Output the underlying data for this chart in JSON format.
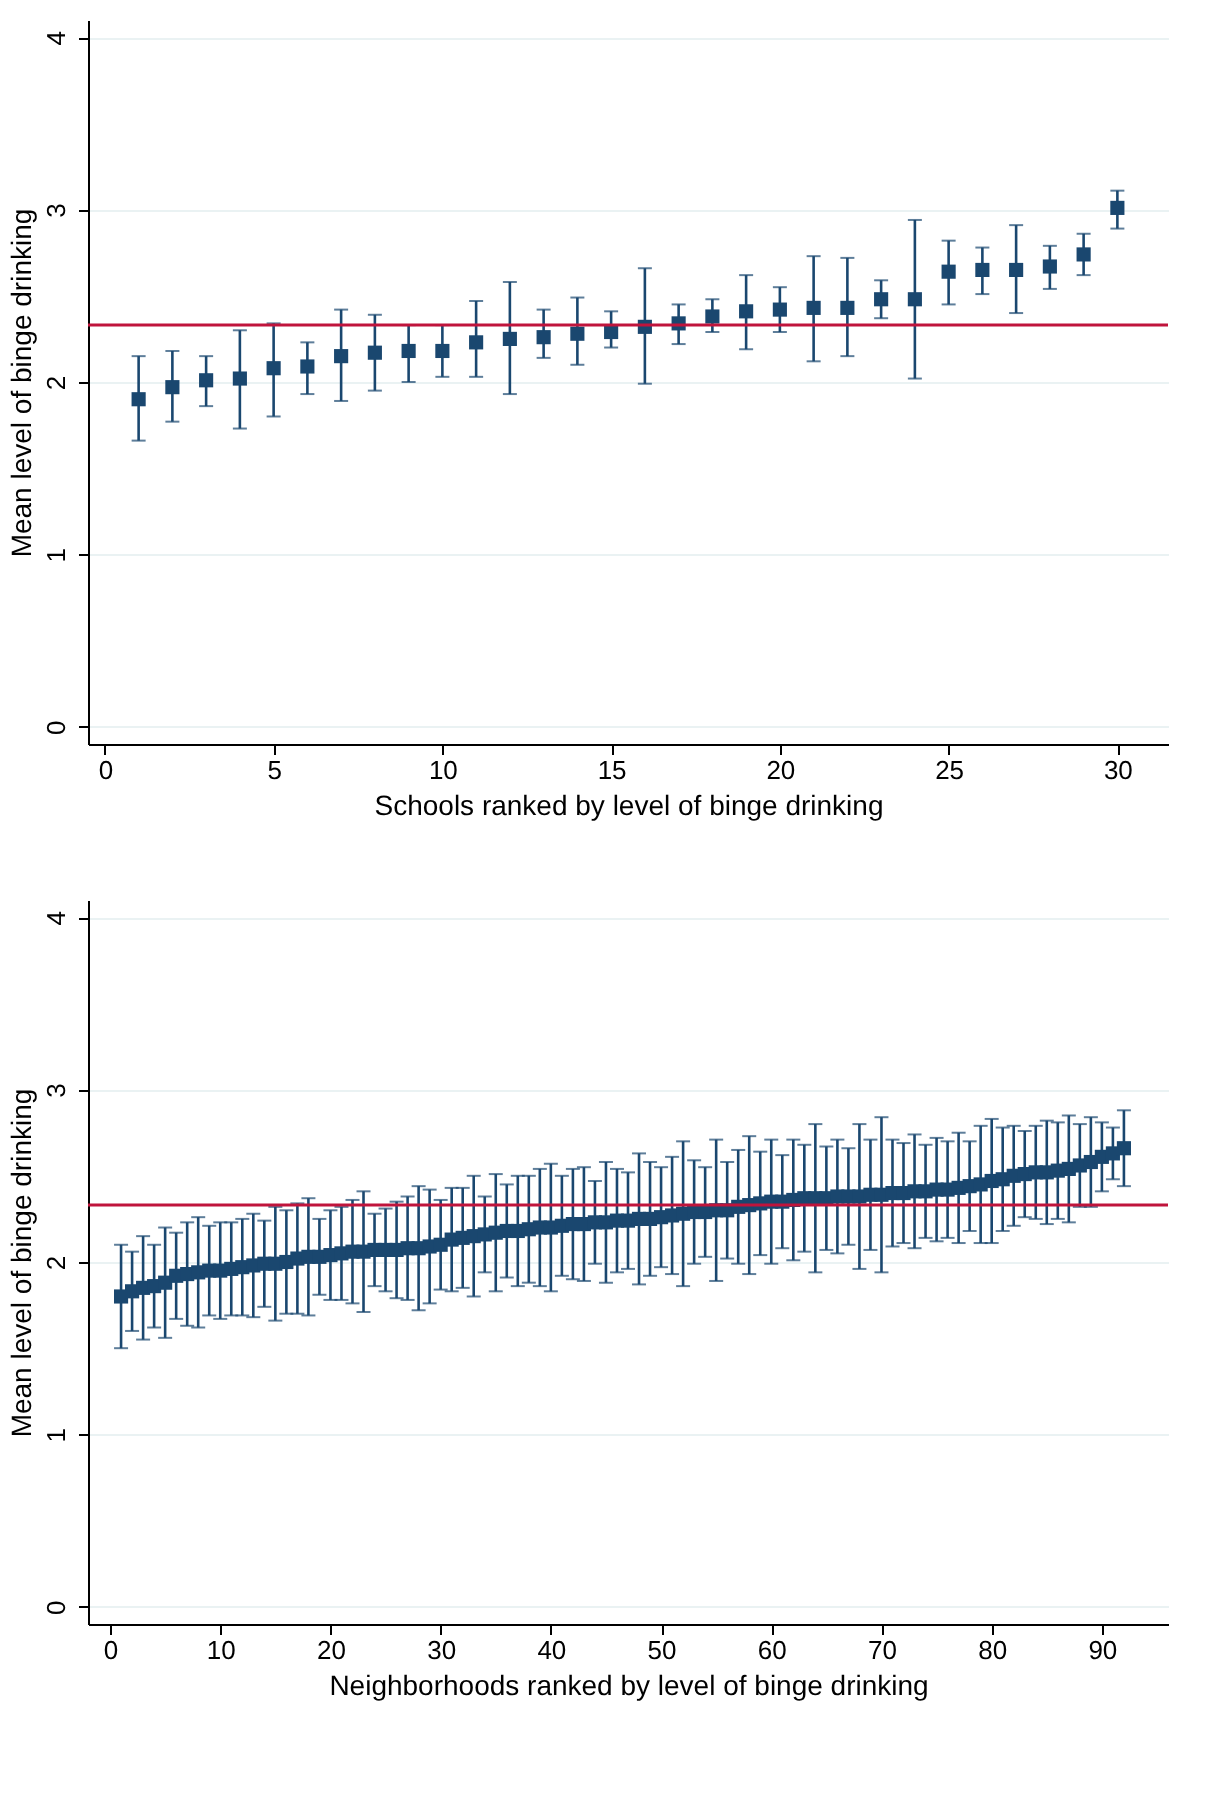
{
  "chart_data": [
    {
      "type": "scatter",
      "xlabel": "Schools ranked by level of binge drinking",
      "ylabel": "Mean level of binge drinking",
      "x": [
        1,
        2,
        3,
        4,
        5,
        6,
        7,
        8,
        9,
        10,
        11,
        12,
        13,
        14,
        15,
        16,
        17,
        18,
        19,
        20,
        21,
        22,
        23,
        24,
        25,
        26,
        27,
        28,
        29,
        30
      ],
      "series": [
        {
          "color": "#1a476f",
          "values": [
            1.9,
            1.97,
            2.01,
            2.02,
            2.08,
            2.09,
            2.15,
            2.17,
            2.18,
            2.18,
            2.23,
            2.25,
            2.26,
            2.28,
            2.29,
            2.32,
            2.34,
            2.38,
            2.41,
            2.42,
            2.43,
            2.43,
            2.48,
            2.48,
            2.64,
            2.65,
            2.65,
            2.67,
            2.74,
            3.01
          ],
          "errors": [
            [
              1.66,
              2.15
            ],
            [
              1.77,
              2.18
            ],
            [
              1.86,
              2.15
            ],
            [
              1.73,
              2.3
            ],
            [
              1.8,
              2.34
            ],
            [
              1.93,
              2.23
            ],
            [
              1.89,
              2.42
            ],
            [
              1.95,
              2.39
            ],
            [
              2.0,
              2.33
            ],
            [
              2.03,
              2.33
            ],
            [
              2.03,
              2.47
            ],
            [
              1.93,
              2.58
            ],
            [
              2.14,
              2.42
            ],
            [
              2.1,
              2.49
            ],
            [
              2.2,
              2.41
            ],
            [
              1.99,
              2.66
            ],
            [
              2.22,
              2.45
            ],
            [
              2.29,
              2.48
            ],
            [
              2.19,
              2.62
            ],
            [
              2.29,
              2.55
            ],
            [
              2.12,
              2.73
            ],
            [
              2.15,
              2.72
            ],
            [
              2.37,
              2.59
            ],
            [
              2.02,
              2.94
            ],
            [
              2.45,
              2.82
            ],
            [
              2.51,
              2.78
            ],
            [
              2.4,
              2.91
            ],
            [
              2.54,
              2.79
            ],
            [
              2.62,
              2.86
            ],
            [
              2.89,
              3.11
            ]
          ]
        }
      ],
      "xlim": [
        -0.5,
        31.5
      ],
      "xticks": [
        0,
        5,
        10,
        15,
        20,
        25,
        30
      ],
      "ylim": [
        -0.1,
        4.1
      ],
      "yticks": [
        0,
        1,
        2,
        3,
        4
      ],
      "ref_lines": [
        {
          "axis": "y",
          "value": 2.33,
          "color": "#c0143c"
        }
      ],
      "grid": "y",
      "marker": "square"
    },
    {
      "type": "scatter",
      "xlabel": "Neighborhoods ranked by level of binge drinking",
      "ylabel": "Mean level of binge drinking",
      "x": [
        1,
        2,
        3,
        4,
        5,
        6,
        7,
        8,
        9,
        10,
        11,
        12,
        13,
        14,
        15,
        16,
        17,
        18,
        19,
        20,
        21,
        22,
        23,
        24,
        25,
        26,
        27,
        28,
        29,
        30,
        31,
        32,
        33,
        34,
        35,
        36,
        37,
        38,
        39,
        40,
        41,
        42,
        43,
        44,
        45,
        46,
        47,
        48,
        49,
        50,
        51,
        52,
        53,
        54,
        55,
        56,
        57,
        58,
        59,
        60,
        61,
        62,
        63,
        64,
        65,
        66,
        67,
        68,
        69,
        70,
        71,
        72,
        73,
        74,
        75,
        76,
        77,
        78,
        79,
        80,
        81,
        82,
        83,
        84,
        85,
        86,
        87,
        88,
        89,
        90,
        91,
        92
      ],
      "series": [
        {
          "color": "#1a476f",
          "values": [
            1.8,
            1.83,
            1.85,
            1.86,
            1.88,
            1.92,
            1.93,
            1.94,
            1.95,
            1.95,
            1.96,
            1.97,
            1.98,
            1.99,
            1.99,
            2.0,
            2.02,
            2.03,
            2.03,
            2.04,
            2.05,
            2.06,
            2.06,
            2.07,
            2.07,
            2.07,
            2.08,
            2.08,
            2.09,
            2.1,
            2.13,
            2.14,
            2.15,
            2.16,
            2.17,
            2.18,
            2.18,
            2.19,
            2.2,
            2.2,
            2.21,
            2.22,
            2.22,
            2.23,
            2.23,
            2.24,
            2.24,
            2.25,
            2.25,
            2.26,
            2.27,
            2.28,
            2.29,
            2.29,
            2.3,
            2.3,
            2.32,
            2.33,
            2.34,
            2.35,
            2.35,
            2.36,
            2.37,
            2.37,
            2.37,
            2.38,
            2.38,
            2.38,
            2.39,
            2.39,
            2.4,
            2.4,
            2.41,
            2.41,
            2.42,
            2.42,
            2.43,
            2.44,
            2.45,
            2.47,
            2.48,
            2.5,
            2.51,
            2.52,
            2.52,
            2.53,
            2.54,
            2.56,
            2.58,
            2.61,
            2.63,
            2.66
          ],
          "errors": [
            0.3,
            0.23,
            0.3,
            0.24,
            0.32,
            0.25,
            0.3,
            0.32,
            0.26,
            0.28,
            0.27,
            0.28,
            0.3,
            0.25,
            0.33,
            0.3,
            0.32,
            0.34,
            0.22,
            0.26,
            0.27,
            0.3,
            0.35,
            0.21,
            0.24,
            0.28,
            0.3,
            0.36,
            0.33,
            0.26,
            0.3,
            0.29,
            0.35,
            0.22,
            0.34,
            0.27,
            0.32,
            0.31,
            0.34,
            0.37,
            0.29,
            0.32,
            0.33,
            0.24,
            0.35,
            0.3,
            0.28,
            0.38,
            0.33,
            0.29,
            0.34,
            0.42,
            0.3,
            0.26,
            0.41,
            0.28,
            0.33,
            0.4,
            0.3,
            0.36,
            0.27,
            0.35,
            0.31,
            0.43,
            0.3,
            0.33,
            0.28,
            0.42,
            0.32,
            0.45,
            0.31,
            0.29,
            0.33,
            0.27,
            0.3,
            0.28,
            0.32,
            0.26,
            0.34,
            0.36,
            0.3,
            0.29,
            0.25,
            0.27,
            0.3,
            0.28,
            0.31,
            0.24,
            0.26,
            0.2,
            0.15,
            0.22
          ]
        }
      ],
      "xlim": [
        -2,
        96
      ],
      "xticks": [
        0,
        10,
        20,
        30,
        40,
        50,
        60,
        70,
        80,
        90
      ],
      "ylim": [
        -0.1,
        4.1
      ],
      "yticks": [
        0,
        1,
        2,
        3,
        4
      ],
      "ref_lines": [
        {
          "axis": "y",
          "value": 2.33,
          "color": "#c0143c"
        }
      ],
      "grid": "y",
      "marker": "square"
    }
  ]
}
